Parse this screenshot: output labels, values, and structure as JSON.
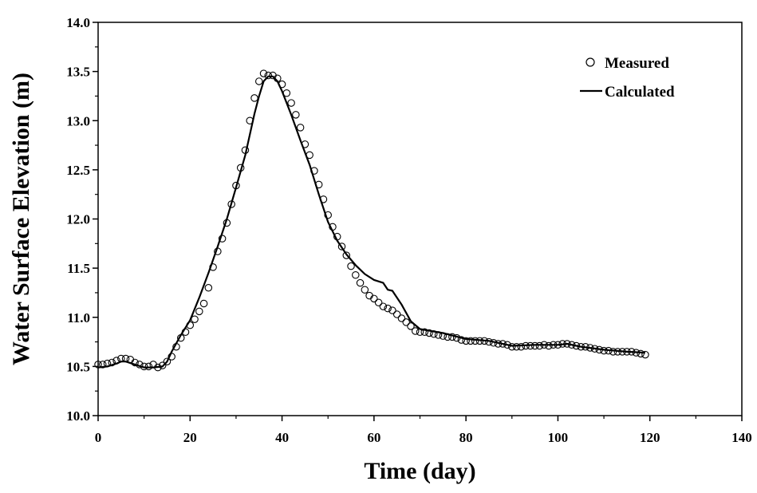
{
  "chart_data": {
    "type": "scatter",
    "xlabel": "Time (day)",
    "ylabel": "Water Surface Elevation (m)",
    "xlim": [
      0,
      140
    ],
    "ylim": [
      10.0,
      14.0
    ],
    "x_ticks": [
      "0",
      "20",
      "40",
      "60",
      "80",
      "100",
      "120",
      "140"
    ],
    "y_ticks": [
      "10.0",
      "10.5",
      "11.0",
      "11.5",
      "12.0",
      "12.5",
      "13.0",
      "13.5",
      "14.0"
    ],
    "grid": false,
    "legend_position": "top-right",
    "series": [
      {
        "name": "Measured",
        "style": "open-circle",
        "color": "#000000",
        "x": [
          0,
          1,
          2,
          3,
          4,
          5,
          6,
          7,
          8,
          9,
          10,
          11,
          12,
          13,
          14,
          15,
          16,
          17,
          18,
          19,
          20,
          21,
          22,
          23,
          24,
          25,
          26,
          27,
          28,
          29,
          30,
          31,
          32,
          33,
          34,
          35,
          36,
          37,
          38,
          39,
          40,
          41,
          42,
          43,
          44,
          45,
          46,
          47,
          48,
          49,
          50,
          51,
          52,
          53,
          54,
          55,
          56,
          57,
          58,
          59,
          60,
          61,
          62,
          63,
          64,
          65,
          66,
          67,
          68,
          69,
          70,
          71,
          72,
          73,
          74,
          75,
          76,
          77,
          78,
          79,
          80,
          81,
          82,
          83,
          84,
          85,
          86,
          87,
          88,
          89,
          90,
          91,
          92,
          93,
          94,
          95,
          96,
          97,
          98,
          99,
          100,
          101,
          102,
          103,
          104,
          105,
          106,
          107,
          108,
          109,
          110,
          111,
          112,
          113,
          114,
          115,
          116,
          117,
          118,
          119
        ],
        "y": [
          10.52,
          10.52,
          10.53,
          10.54,
          10.56,
          10.58,
          10.58,
          10.57,
          10.54,
          10.52,
          10.5,
          10.5,
          10.52,
          10.49,
          10.51,
          10.55,
          10.6,
          10.7,
          10.79,
          10.85,
          10.92,
          10.98,
          11.06,
          11.14,
          11.3,
          11.51,
          11.67,
          11.8,
          11.96,
          12.15,
          12.34,
          12.52,
          12.7,
          13.0,
          13.23,
          13.4,
          13.48,
          13.46,
          13.46,
          13.43,
          13.37,
          13.28,
          13.18,
          13.06,
          12.93,
          12.76,
          12.65,
          12.49,
          12.35,
          12.2,
          12.04,
          11.92,
          11.82,
          11.72,
          11.63,
          11.52,
          11.43,
          11.35,
          11.28,
          11.22,
          11.19,
          11.15,
          11.11,
          11.09,
          11.07,
          11.03,
          10.99,
          10.95,
          10.91,
          10.86,
          10.85,
          10.85,
          10.84,
          10.83,
          10.82,
          10.81,
          10.8,
          10.8,
          10.79,
          10.77,
          10.76,
          10.76,
          10.76,
          10.76,
          10.76,
          10.75,
          10.74,
          10.73,
          10.73,
          10.72,
          10.7,
          10.7,
          10.7,
          10.71,
          10.71,
          10.71,
          10.71,
          10.72,
          10.71,
          10.72,
          10.72,
          10.73,
          10.73,
          10.72,
          10.71,
          10.7,
          10.7,
          10.69,
          10.68,
          10.67,
          10.66,
          10.66,
          10.65,
          10.65,
          10.65,
          10.65,
          10.65,
          10.64,
          10.63,
          10.62
        ]
      },
      {
        "name": "Calculated",
        "style": "line",
        "color": "#000000",
        "x": [
          0,
          2,
          4,
          5,
          6,
          8,
          10,
          12,
          14,
          15,
          16,
          18,
          20,
          22,
          24,
          26,
          28,
          30,
          32,
          34,
          35,
          36,
          37,
          38,
          39,
          40,
          42,
          44,
          46,
          48,
          50,
          52,
          54,
          56,
          58,
          60,
          62,
          63,
          64,
          66,
          68,
          70,
          75,
          80,
          85,
          90,
          95,
          100,
          102,
          105,
          110,
          115,
          119
        ],
        "y": [
          10.49,
          10.5,
          10.53,
          10.55,
          10.55,
          10.52,
          10.49,
          10.49,
          10.5,
          10.55,
          10.65,
          10.82,
          10.97,
          11.2,
          11.45,
          11.72,
          12.0,
          12.32,
          12.65,
          13.07,
          13.25,
          13.4,
          13.45,
          13.45,
          13.4,
          13.3,
          13.06,
          12.8,
          12.55,
          12.25,
          11.97,
          11.78,
          11.64,
          11.53,
          11.44,
          11.38,
          11.35,
          11.28,
          11.27,
          11.13,
          10.96,
          10.88,
          10.84,
          10.78,
          10.76,
          10.71,
          10.72,
          10.72,
          10.73,
          10.7,
          10.67,
          10.65,
          10.64
        ]
      }
    ]
  }
}
